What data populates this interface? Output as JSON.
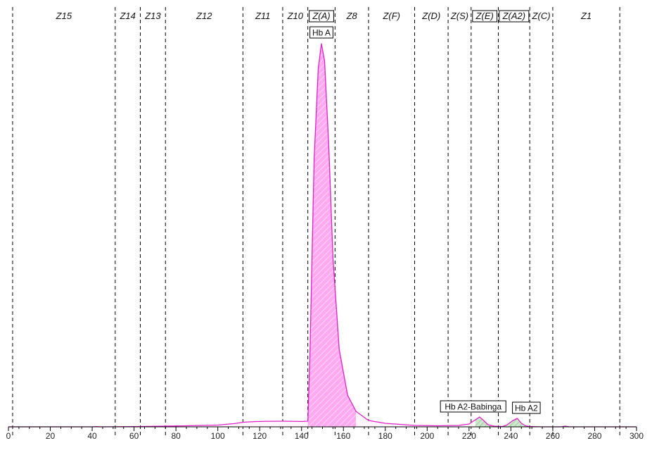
{
  "chart_data": {
    "type": "area",
    "xlim": [
      0,
      300
    ],
    "x_ticks": [
      "0",
      "20",
      "40",
      "60",
      "80",
      "100",
      "120",
      "140",
      "160",
      "180",
      "200",
      "220",
      "240",
      "260",
      "280",
      "300"
    ],
    "grid": false,
    "colors": {
      "fill": "#ff99ee",
      "line": "#e020c8",
      "axis": "#000000",
      "minor_fill": "#99cc99"
    },
    "zones": [
      {
        "label": "Z15",
        "start": 2,
        "end": 51,
        "boxed": false
      },
      {
        "label": "Z14",
        "start": 51,
        "end": 63,
        "boxed": false
      },
      {
        "label": "Z13",
        "start": 63,
        "end": 75,
        "boxed": false
      },
      {
        "label": "Z12",
        "start": 75,
        "end": 112,
        "boxed": false
      },
      {
        "label": "Z11",
        "start": 112,
        "end": 131,
        "boxed": false
      },
      {
        "label": "Z10",
        "start": 131,
        "end": 143,
        "boxed": false
      },
      {
        "label": "Z(A)",
        "start": 143,
        "end": 156,
        "boxed": true
      },
      {
        "label": "Z8",
        "start": 156,
        "end": 172,
        "boxed": false
      },
      {
        "label": "Z(F)",
        "start": 172,
        "end": 194,
        "boxed": false
      },
      {
        "label": "Z(D)",
        "start": 194,
        "end": 210,
        "boxed": false
      },
      {
        "label": "Z(S)",
        "start": 210,
        "end": 221,
        "boxed": false
      },
      {
        "label": "Z(E)",
        "start": 221,
        "end": 234,
        "boxed": true
      },
      {
        "label": "Z(A2)",
        "start": 234,
        "end": 249,
        "boxed": true
      },
      {
        "label": "Z(C)",
        "start": 249,
        "end": 260,
        "boxed": false
      },
      {
        "label": "Z1",
        "start": 260,
        "end": 292,
        "boxed": false
      }
    ],
    "series": [
      {
        "x": [
          0,
          40,
          42,
          44,
          60,
          80,
          100,
          108,
          112,
          118,
          125,
          131,
          140,
          143,
          144,
          146,
          148,
          149.5,
          151,
          153,
          155,
          158,
          162,
          166,
          172,
          180,
          194,
          205,
          215,
          220,
          223,
          225,
          227,
          229,
          232,
          236,
          238,
          241,
          243,
          245,
          247,
          249,
          255,
          264,
          266,
          268,
          275,
          300
        ],
        "y": [
          0.0,
          0.0,
          0.3,
          0.0,
          0.4,
          1.2,
          2.5,
          4.6,
          6.5,
          7.5,
          7.9,
          8.0,
          7.6,
          8.0,
          100.0,
          380.0,
          510.0,
          545.0,
          520.0,
          400.0,
          240.0,
          110.0,
          45.0,
          22.0,
          9.0,
          5.0,
          2.0,
          1.5,
          2.0,
          4.0,
          10.0,
          14.0,
          9.0,
          3.0,
          1.0,
          0.5,
          2.5,
          9.0,
          12.0,
          5.0,
          1.5,
          0.5,
          0.0,
          0.0,
          1.0,
          0.0,
          0.0,
          0.0
        ]
      }
    ],
    "peaks": [
      {
        "label": "Hb A",
        "x": 149.5
      },
      {
        "label": "Hb A2-Babinga",
        "x": 225
      },
      {
        "label": "Hb A2",
        "x": 243
      }
    ]
  }
}
